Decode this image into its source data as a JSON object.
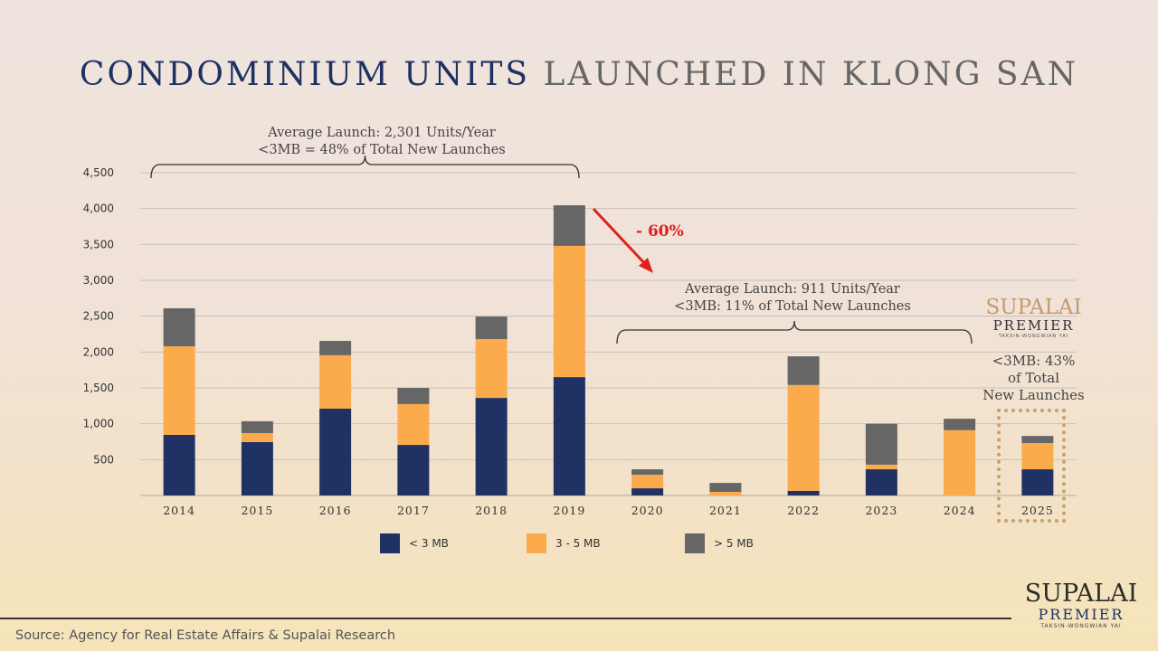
{
  "title": {
    "part1": "CONDOMINIUM UNITS",
    "part2": "LAUNCHED IN KLONG SAN"
  },
  "annotations": {
    "period1_line1": "Average Launch: 2,301 Units/Year",
    "period1_line2": "<3MB = 48% of Total New Launches",
    "period2_line1": "Average Launch: 911 Units/Year",
    "period2_line2": "<3MB: 11% of Total New Launches",
    "change": "- 60%",
    "y2025_line1": "<3MB: 43%",
    "y2025_line2": "of Total",
    "y2025_line3": "New Launches"
  },
  "logo": {
    "brand": "SUPALAI",
    "sub": "PREMIER",
    "location": "TAKSIN-WONGWIAN YAI"
  },
  "source": "Source: Agency for Real Estate Affairs & Supalai Research",
  "colors": {
    "lt3": "#1f3263",
    "mid": "#fbaa4c",
    "gt5": "#666666",
    "arrow": "#e0201c"
  },
  "chart_data": {
    "type": "bar",
    "stacked": true,
    "title": "CONDOMINIUM UNITS LAUNCHED IN KLONG SAN",
    "categories": [
      "2014",
      "2015",
      "2016",
      "2017",
      "2018",
      "2019",
      "2020",
      "2021",
      "2022",
      "2023",
      "2024",
      "2025"
    ],
    "series": [
      {
        "name": "< 3 MB",
        "values": [
          845,
          745,
          1210,
          705,
          1360,
          1650,
          100,
          0,
          65,
          365,
          0,
          365
        ]
      },
      {
        "name": "3 - 5 MB",
        "values": [
          1235,
          125,
          745,
          570,
          820,
          1830,
          190,
          50,
          1475,
          65,
          910,
          365
        ]
      },
      {
        "name": "> 5 MB",
        "values": [
          530,
          165,
          200,
          225,
          315,
          565,
          75,
          125,
          400,
          570,
          160,
          100
        ]
      }
    ],
    "yticks": [
      "500",
      "1,000",
      "1,500",
      "2,000",
      "2,500",
      "3,000",
      "3,500",
      "4,000",
      "4,500"
    ],
    "ylim": [
      0,
      4500
    ],
    "grid": true,
    "legend": "bottom"
  }
}
